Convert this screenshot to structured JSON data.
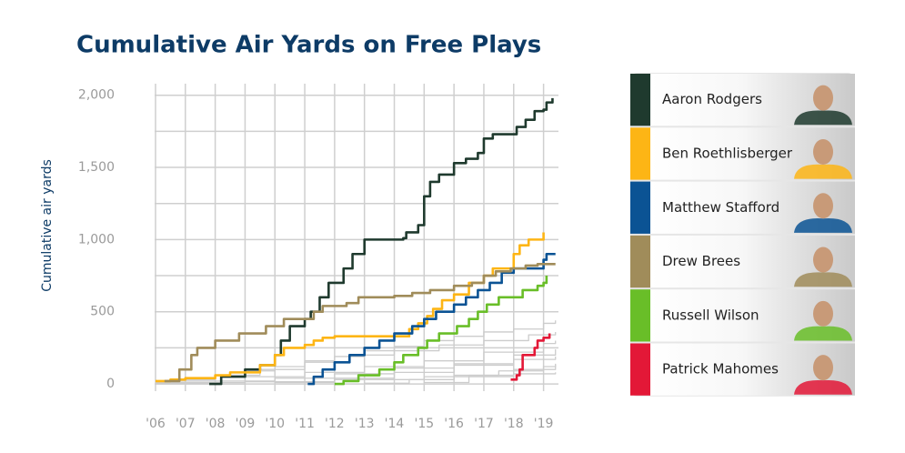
{
  "chart_data": {
    "type": "line",
    "step": true,
    "title": "Cumulative Air Yards on Free Plays",
    "y_label": "Cumulative air yards",
    "xlim": [
      2005.97,
      2019.5
    ],
    "ylim": [
      -50,
      2080
    ],
    "xticks": [
      {
        "value": 2006,
        "label": "'06"
      },
      {
        "value": 2007,
        "label": "'07"
      },
      {
        "value": 2008,
        "label": "'08"
      },
      {
        "value": 2009,
        "label": "'09"
      },
      {
        "value": 2010,
        "label": "'10"
      },
      {
        "value": 2011,
        "label": "'11"
      },
      {
        "value": 2012,
        "label": "'12"
      },
      {
        "value": 2013,
        "label": "'13"
      },
      {
        "value": 2014,
        "label": "'14"
      },
      {
        "value": 2015,
        "label": "'15"
      },
      {
        "value": 2016,
        "label": "'16"
      },
      {
        "value": 2017,
        "label": "'17"
      },
      {
        "value": 2018,
        "label": "'18"
      },
      {
        "value": 2019,
        "label": "'19"
      }
    ],
    "yticks": [
      0,
      500,
      {
        "value": 1000,
        "label": "1,000"
      },
      {
        "value": 1500,
        "label": "1,500"
      },
      {
        "value": 2000,
        "label": "2,000"
      }
    ],
    "yminorticks": [
      250,
      750,
      1250,
      1750
    ],
    "grid": true,
    "background_series": [
      {
        "color": "#cccccc",
        "x": [
          2006,
          2007,
          2008,
          2009,
          2010,
          2011,
          2012,
          2013,
          2014,
          2015,
          2016,
          2017,
          2018,
          2019,
          2019.4
        ],
        "values": [
          10,
          30,
          60,
          90,
          120,
          160,
          190,
          230,
          260,
          300,
          330,
          360,
          380,
          420,
          440
        ]
      },
      {
        "color": "#cccccc",
        "x": [
          2006.5,
          2008,
          2009.5,
          2011,
          2012.5,
          2014,
          2015.5,
          2017,
          2018.5,
          2019.4
        ],
        "values": [
          20,
          60,
          100,
          150,
          200,
          230,
          270,
          300,
          340,
          360
        ]
      },
      {
        "color": "#cccccc",
        "x": [
          2006,
          2008,
          2010,
          2012,
          2014,
          2016,
          2018,
          2019.4
        ],
        "values": [
          5,
          20,
          40,
          70,
          110,
          140,
          170,
          190
        ]
      },
      {
        "color": "#cccccc",
        "x": [
          2007,
          2009,
          2011,
          2013,
          2015,
          2017,
          2019,
          2019.4
        ],
        "values": [
          10,
          50,
          80,
          120,
          160,
          220,
          280,
          300
        ]
      },
      {
        "color": "#cccccc",
        "x": [
          2010,
          2012,
          2014,
          2016,
          2018,
          2019.4
        ],
        "values": [
          10,
          40,
          80,
          130,
          200,
          240
        ]
      },
      {
        "color": "#cccccc",
        "x": [
          2013,
          2014.5,
          2016,
          2017.5,
          2019,
          2019.4
        ],
        "values": [
          5,
          30,
          60,
          90,
          120,
          130
        ]
      },
      {
        "color": "#cccccc",
        "x": [
          2006,
          2009,
          2012,
          2015,
          2018,
          2019.4
        ],
        "values": [
          0,
          15,
          30,
          50,
          70,
          80
        ]
      },
      {
        "color": "#cccccc",
        "x": [
          2015,
          2016.5,
          2018,
          2019.4
        ],
        "values": [
          10,
          60,
          100,
          140
        ]
      }
    ],
    "series": [
      {
        "name": "Aaron Rodgers",
        "color": "#1f3a2e",
        "x": [
          2007.8,
          2008.2,
          2009,
          2009.5,
          2010,
          2010.2,
          2010.5,
          2011,
          2011.2,
          2011.5,
          2011.8,
          2012.3,
          2012.6,
          2013,
          2014.3,
          2014.4,
          2014.8,
          2015,
          2015.2,
          2015.5,
          2016,
          2016.4,
          2016.8,
          2017,
          2017.3,
          2018.1,
          2018.4,
          2018.7,
          2019,
          2019.1,
          2019.3
        ],
        "values": [
          0,
          50,
          100,
          130,
          200,
          300,
          400,
          450,
          500,
          600,
          700,
          800,
          900,
          1000,
          1010,
          1050,
          1100,
          1300,
          1400,
          1450,
          1530,
          1560,
          1600,
          1700,
          1730,
          1780,
          1830,
          1890,
          1900,
          1950,
          1980
        ]
      },
      {
        "name": "Ben Roethlisberger",
        "color": "#fdb515",
        "x": [
          2006,
          2006.5,
          2007,
          2008,
          2008.5,
          2009.5,
          2010,
          2010.3,
          2011,
          2011.3,
          2011.6,
          2012,
          2014.5,
          2014.8,
          2015.1,
          2015.3,
          2015.6,
          2016,
          2016.5,
          2017,
          2017.3,
          2018,
          2018.2,
          2018.5,
          2019,
          2019
        ],
        "values": [
          20,
          30,
          40,
          60,
          80,
          130,
          200,
          250,
          270,
          300,
          320,
          330,
          380,
          420,
          470,
          520,
          580,
          620,
          700,
          750,
          800,
          900,
          960,
          1000,
          1040,
          1050
        ]
      },
      {
        "name": "Matthew Stafford",
        "color": "#0b5394",
        "x": [
          2011.1,
          2011.3,
          2011.6,
          2012,
          2012.5,
          2013,
          2013.5,
          2014,
          2014.6,
          2015,
          2015.4,
          2016,
          2016.4,
          2016.8,
          2017.2,
          2017.6,
          2018,
          2019,
          2019.1,
          2019.4
        ],
        "values": [
          0,
          50,
          100,
          150,
          200,
          250,
          300,
          350,
          400,
          450,
          500,
          550,
          600,
          650,
          700,
          770,
          800,
          860,
          900,
          900
        ]
      },
      {
        "name": "Drew Brees",
        "color": "#a08c5a",
        "x": [
          2006.3,
          2006.8,
          2007.2,
          2007.4,
          2008,
          2008.8,
          2009.7,
          2010.3,
          2011.3,
          2011.6,
          2012.4,
          2012.8,
          2014,
          2014.6,
          2015.2,
          2016,
          2016.6,
          2017,
          2017.4,
          2017.9,
          2018.4,
          2018.8,
          2019.4
        ],
        "values": [
          20,
          100,
          200,
          250,
          300,
          350,
          400,
          450,
          500,
          540,
          560,
          600,
          610,
          630,
          650,
          680,
          700,
          750,
          780,
          800,
          820,
          830,
          830
        ]
      },
      {
        "name": "Russell Wilson",
        "color": "#69be28",
        "x": [
          2012,
          2012.3,
          2012.8,
          2013.5,
          2014,
          2014.3,
          2014.8,
          2015.1,
          2015.5,
          2016.1,
          2016.5,
          2016.8,
          2017.1,
          2017.5,
          2018.3,
          2018.8,
          2019,
          2019.1
        ],
        "values": [
          0,
          20,
          60,
          100,
          150,
          200,
          250,
          300,
          350,
          400,
          450,
          500,
          550,
          600,
          650,
          680,
          700,
          750
        ]
      },
      {
        "name": "Patrick Mahomes",
        "color": "#e31837",
        "x": [
          2017.9,
          2018.1,
          2018.2,
          2018.3,
          2018.7,
          2018.8,
          2019,
          2019.2
        ],
        "values": [
          30,
          60,
          100,
          200,
          250,
          300,
          320,
          350
        ]
      }
    ]
  }
}
